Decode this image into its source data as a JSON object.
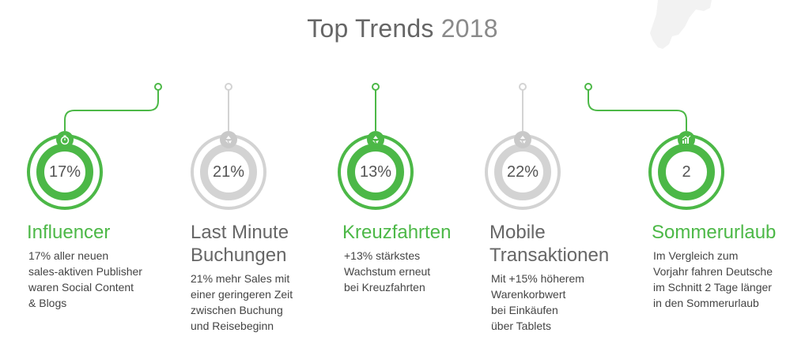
{
  "title": {
    "main": "Top Trends",
    "year": "2018"
  },
  "colors": {
    "accent": "#4cb847",
    "inactive": "#d3d3d3",
    "text": "#444444"
  },
  "trends": [
    {
      "value": "17%",
      "heading": [
        "Influencer"
      ],
      "desc": [
        "17% aller neuen",
        "sales-aktiven Publisher",
        "waren Social Content",
        "& Blogs"
      ],
      "icon": "stopwatch-icon",
      "state": "active"
    },
    {
      "value": "21%",
      "heading": [
        "Last Minute",
        "Buchungen"
      ],
      "desc": [
        "21% mehr Sales mit",
        "einer geringeren Zeit",
        "zwischen Buchung",
        "und Reisebeginn"
      ],
      "icon": "cycle-arrows-icon",
      "state": "inactive"
    },
    {
      "value": "13%",
      "heading": [
        "Kreuzfahrten"
      ],
      "desc": [
        "+13% stärkstes",
        "Wachstum erneut",
        "bei Kreuzfahrten"
      ],
      "icon": "cycle-arrows-icon",
      "state": "active"
    },
    {
      "value": "22%",
      "heading": [
        "Mobile",
        "Transaktionen"
      ],
      "desc": [
        "Mit +15% höherem",
        "Warenkorbwert",
        "bei Einkäufen",
        "über Tablets"
      ],
      "icon": "cycle-arrows-icon",
      "state": "inactive"
    },
    {
      "value": "2",
      "heading": [
        "Sommerurlaub"
      ],
      "desc": [
        "Im Vergleich zum",
        "Vorjahr fahren Deutsche",
        "im Schnitt 2 Tage länger",
        "in den Sommerurlaub"
      ],
      "icon": "bar-chart-icon",
      "state": "active"
    }
  ]
}
